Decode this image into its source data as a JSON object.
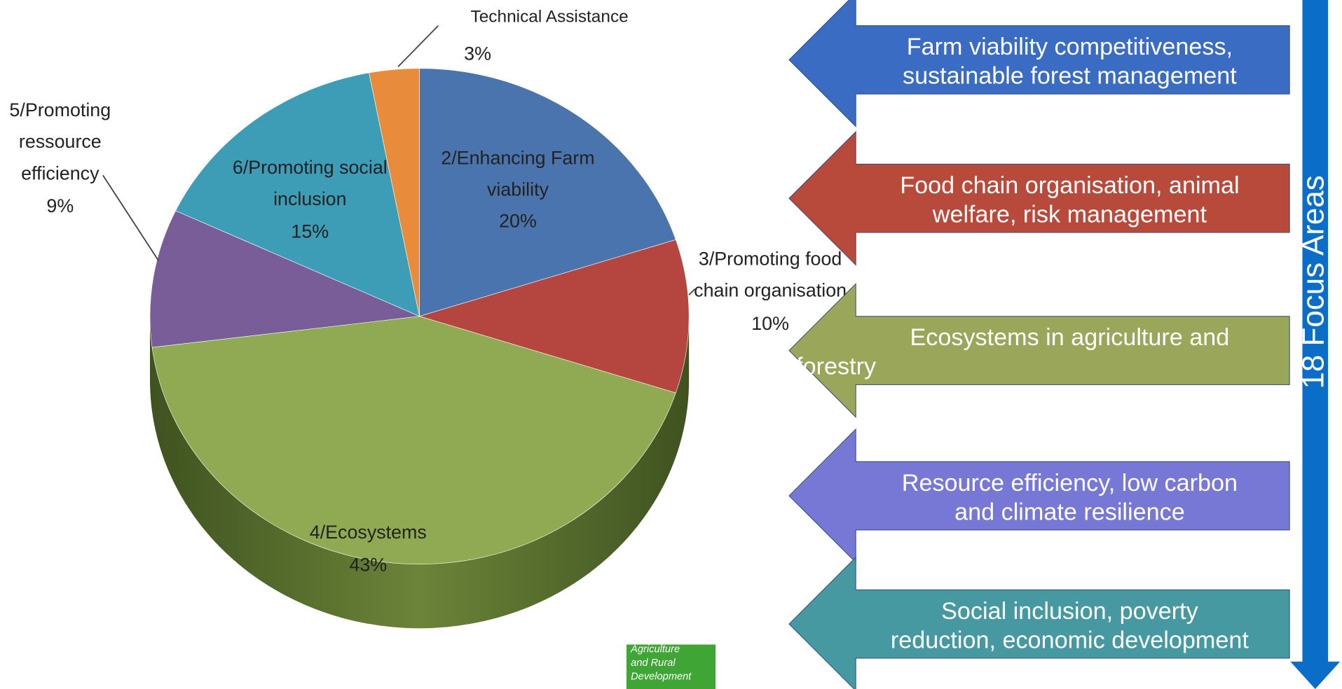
{
  "chart_data": {
    "type": "pie",
    "categories": [
      "2/Enhancing Farm viability",
      "3/Promoting food chain organisation",
      "4/Ecosystems",
      "5/Promoting ressource efficiency",
      "6/Promoting social inclusion",
      "Technical Assistance"
    ],
    "values": [
      20,
      10,
      43,
      9,
      15,
      3
    ],
    "value_labels": [
      "20%",
      "10%",
      "43%",
      "9%",
      "15%",
      "3%"
    ],
    "colors": [
      "#4a74ad",
      "#b5453f",
      "#8faa52",
      "#795d99",
      "#3d9cb6",
      "#e88b3a"
    ]
  },
  "arrows": [
    {
      "lines": [
        "Farm viability competitiveness,",
        "sustainable forest management"
      ],
      "color": "#3a6cc4"
    },
    {
      "lines": [
        "Food chain organisation, animal",
        "welfare, risk management"
      ],
      "color": "#b84a3c"
    },
    {
      "lines": [
        "Ecosystems in agriculture and",
        "forestry"
      ],
      "color": "#9aa65a"
    },
    {
      "lines": [
        "Resource efficiency, low carbon",
        "and climate resilience"
      ],
      "color": "#7777d6"
    },
    {
      "lines": [
        "Social inclusion, poverty",
        "reduction, economic development"
      ],
      "color": "#4699a0"
    }
  ],
  "side_label": "18 Focus Areas",
  "logo": [
    "Agriculture",
    "and Rural",
    "Development"
  ]
}
